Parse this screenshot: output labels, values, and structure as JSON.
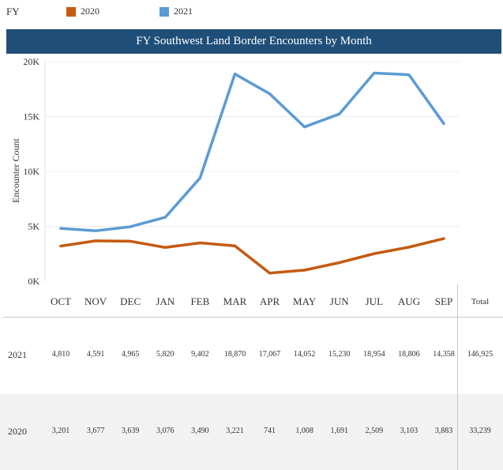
{
  "legend": {
    "title": "FY",
    "entries": [
      {
        "label": "2020",
        "color": "#c55a11"
      },
      {
        "label": "2021",
        "color": "#5b9bd5"
      }
    ]
  },
  "chart_data": {
    "type": "line",
    "title": "FY Southwest Land Border Encounters by Month",
    "xlabel": "",
    "ylabel": "Encounter Count",
    "categories": [
      "OCT",
      "NOV",
      "DEC",
      "JAN",
      "FEB",
      "MAR",
      "APR",
      "MAY",
      "JUN",
      "JUL",
      "AUG",
      "SEP"
    ],
    "series": [
      {
        "name": "2021",
        "color": "#5b9bd5",
        "values": [
          4810,
          4591,
          4965,
          5820,
          9402,
          18870,
          17067,
          14052,
          15230,
          18954,
          18806,
          14358
        ]
      },
      {
        "name": "2020",
        "color": "#c55a11",
        "values": [
          3201,
          3677,
          3639,
          3076,
          3490,
          3221,
          741,
          1008,
          1691,
          2509,
          3103,
          3883
        ]
      }
    ],
    "ylim": [
      0,
      20000
    ],
    "yticks": [
      {
        "value": 0,
        "label": "0K"
      },
      {
        "value": 5000,
        "label": "5K"
      },
      {
        "value": 10000,
        "label": "10K"
      },
      {
        "value": 15000,
        "label": "15K"
      },
      {
        "value": 20000,
        "label": "20K"
      }
    ],
    "grid": true
  },
  "table": {
    "total_header": "Total",
    "rows": [
      {
        "label": "2021",
        "cells": [
          "4,810",
          "4,591",
          "4,965",
          "5,820",
          "9,402",
          "18,870",
          "17,067",
          "14,052",
          "15,230",
          "18,954",
          "18,806",
          "14,358"
        ],
        "total": "146,925"
      },
      {
        "label": "2020",
        "cells": [
          "3,201",
          "3,677",
          "3,639",
          "3,076",
          "3,490",
          "3,221",
          "741",
          "1,008",
          "1,691",
          "2,509",
          "3,103",
          "3,883"
        ],
        "total": "33,239"
      }
    ]
  }
}
